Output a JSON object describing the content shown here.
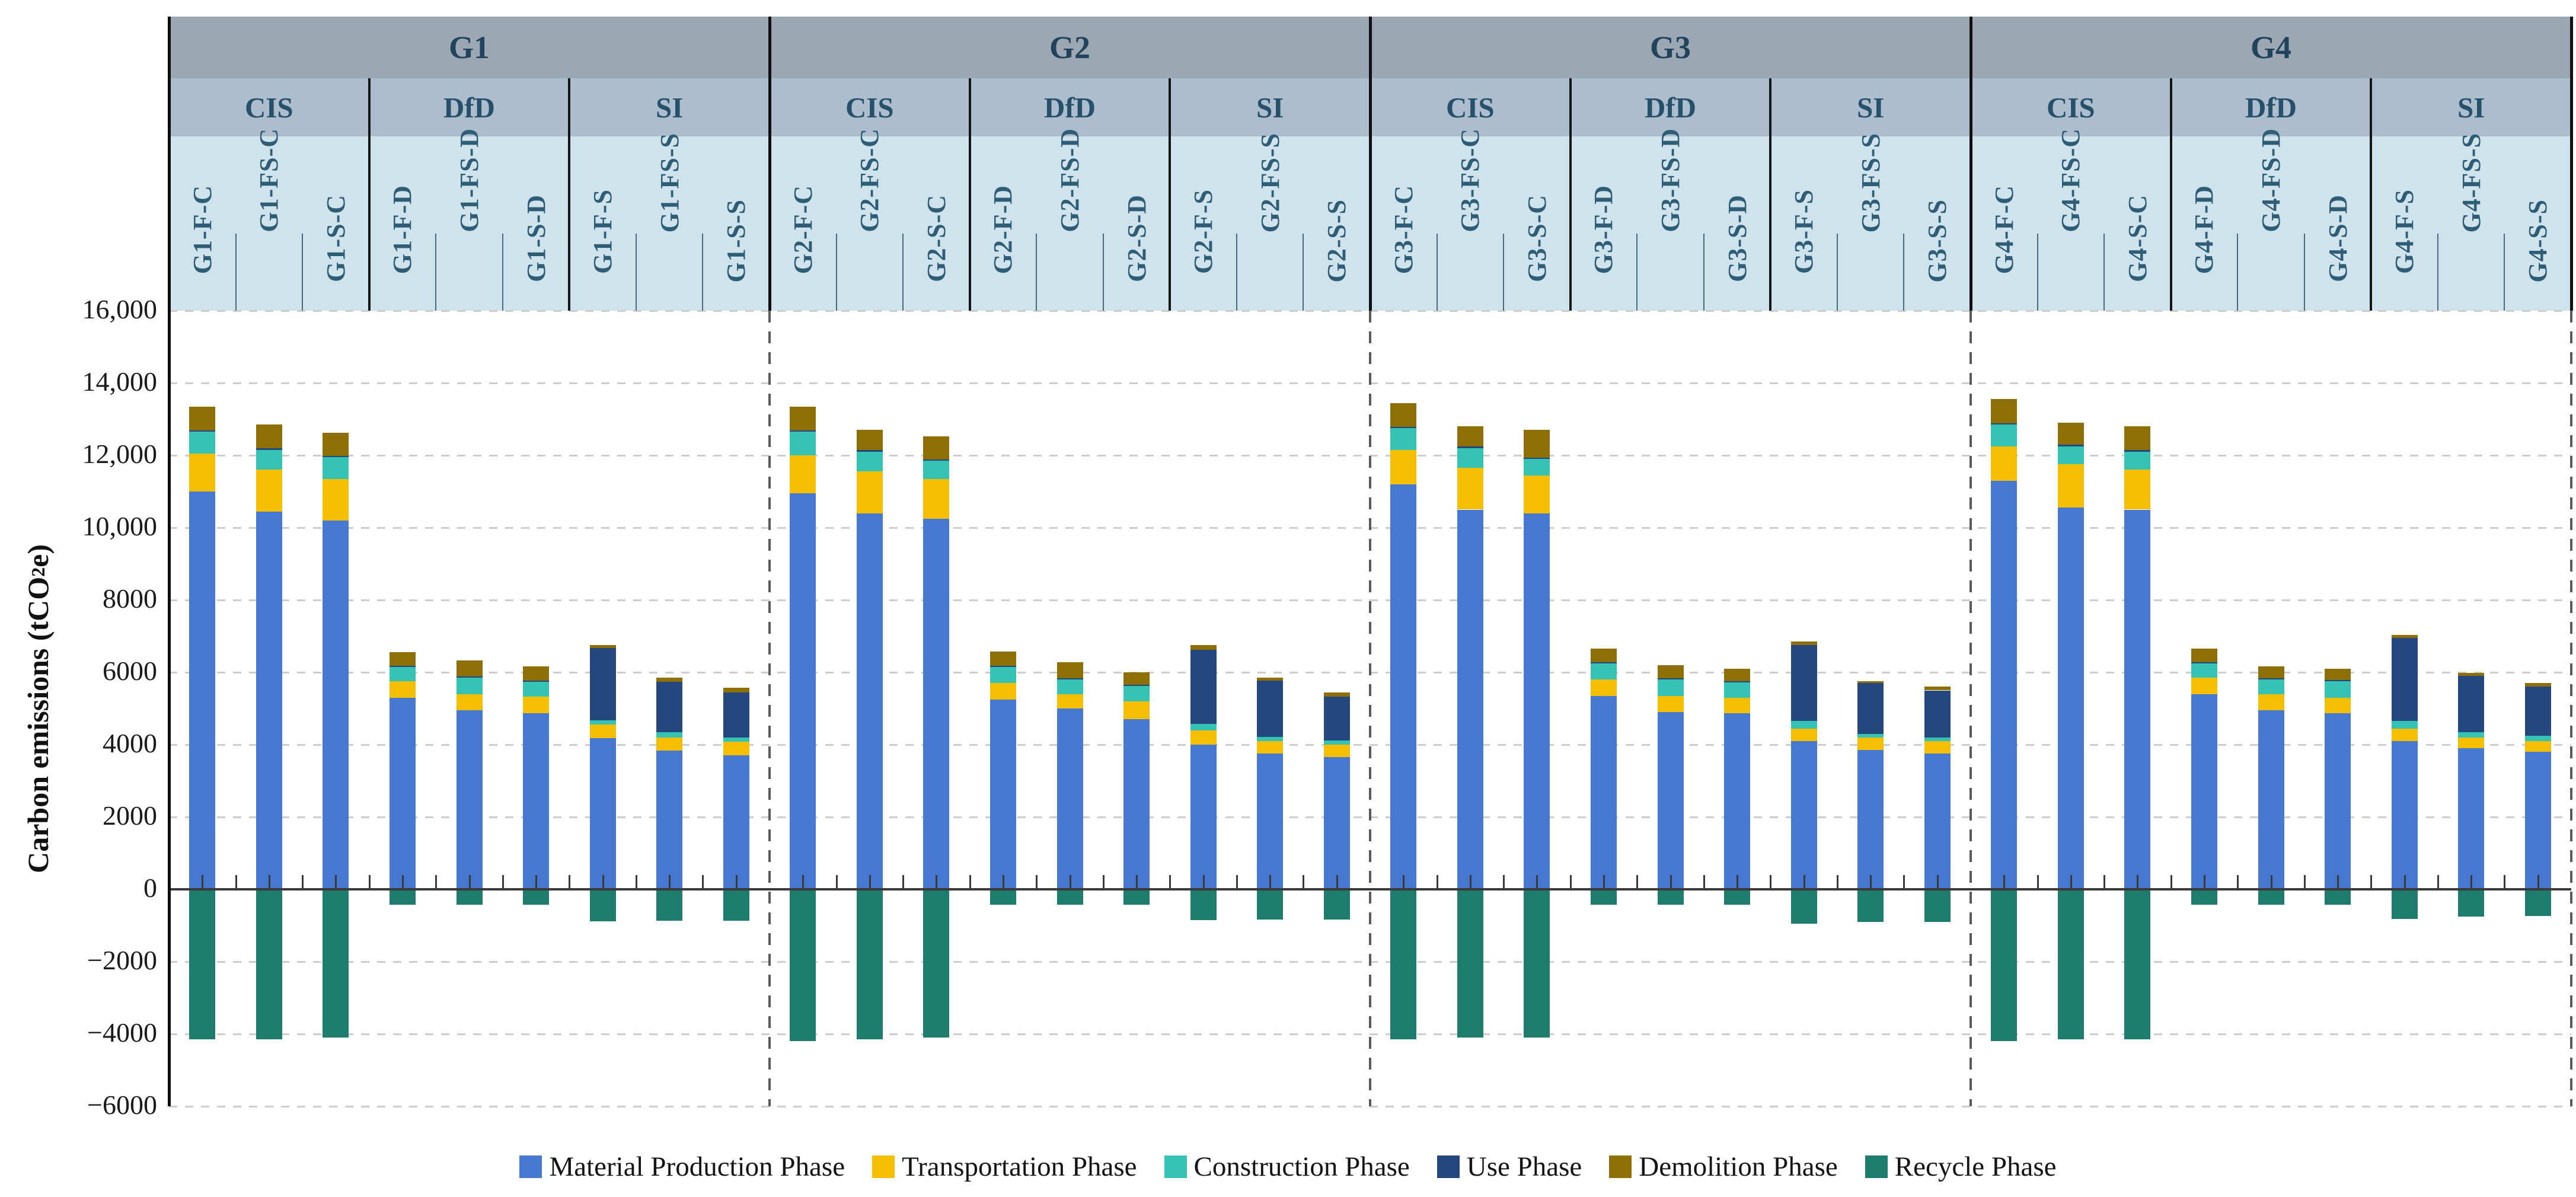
{
  "axis": {
    "y_title_prefix": "Carbon emissions (tCO",
    "y_title_sub": "2",
    "y_title_suffix": "e)",
    "y_min": -6000,
    "y_max": 16000,
    "y_step": 2000,
    "y_ticks": [
      {
        "value": 16000,
        "label": "16,000"
      },
      {
        "value": 14000,
        "label": "14,000"
      },
      {
        "value": 12000,
        "label": "12,000"
      },
      {
        "value": 10000,
        "label": "10,000"
      },
      {
        "value": 8000,
        "label": "8000"
      },
      {
        "value": 6000,
        "label": "6000"
      },
      {
        "value": 4000,
        "label": "4000"
      },
      {
        "value": 2000,
        "label": "2000"
      },
      {
        "value": 0,
        "label": "0"
      },
      {
        "value": -2000,
        "label": "−2000"
      },
      {
        "value": -4000,
        "label": "−4000"
      },
      {
        "value": -6000,
        "label": "−6000"
      }
    ]
  },
  "header": {
    "groups": [
      {
        "label": "G1",
        "subgroups": [
          {
            "label": "CIS",
            "columns": [
              "G1-F-C",
              "G1-FS-C",
              "G1-S-C"
            ]
          },
          {
            "label": "DfD",
            "columns": [
              "G1-F-D",
              "G1-FS-D",
              "G1-S-D"
            ]
          },
          {
            "label": "SI",
            "columns": [
              "G1-F-S",
              "G1-FS-S",
              "G1-S-S"
            ]
          }
        ]
      },
      {
        "label": "G2",
        "subgroups": [
          {
            "label": "CIS",
            "columns": [
              "G2-F-C",
              "G2-FS-C",
              "G2-S-C"
            ]
          },
          {
            "label": "DfD",
            "columns": [
              "G2-F-D",
              "G2-FS-D",
              "G2-S-D"
            ]
          },
          {
            "label": "SI",
            "columns": [
              "G2-F-S",
              "G2-FS-S",
              "G2-S-S"
            ]
          }
        ]
      },
      {
        "label": "G3",
        "subgroups": [
          {
            "label": "CIS",
            "columns": [
              "G3-F-C",
              "G3-FS-C",
              "G3-S-C"
            ]
          },
          {
            "label": "DfD",
            "columns": [
              "G3-F-D",
              "G3-FS-D",
              "G3-S-D"
            ]
          },
          {
            "label": "SI",
            "columns": [
              "G3-F-S",
              "G3-FS-S",
              "G3-S-S"
            ]
          }
        ]
      },
      {
        "label": "G4",
        "subgroups": [
          {
            "label": "CIS",
            "columns": [
              "G4-F-C",
              "G4-FS-C",
              "G4-S-C"
            ]
          },
          {
            "label": "DfD",
            "columns": [
              "G4-F-D",
              "G4-FS-D",
              "G4-S-D"
            ]
          },
          {
            "label": "SI",
            "columns": [
              "G4-F-S",
              "G4-FS-S",
              "G4-S-S"
            ]
          }
        ]
      }
    ]
  },
  "legend": {
    "items": [
      {
        "key": "material",
        "label": "Material Production Phase",
        "color": "#4778D0"
      },
      {
        "key": "transportation",
        "label": "Transportation Phase",
        "color": "#F6BE00"
      },
      {
        "key": "construction",
        "label": "Construction Phase",
        "color": "#35C3B4"
      },
      {
        "key": "use",
        "label": "Use Phase",
        "color": "#24477E"
      },
      {
        "key": "demolition",
        "label": "Demolition Phase",
        "color": "#8D6F05"
      },
      {
        "key": "recycle",
        "label": "Recycle Phase",
        "color": "#1E7C6C"
      }
    ]
  },
  "chart_data": {
    "type": "bar",
    "stacked": true,
    "title": "",
    "xlabel": "",
    "ylabel": "Carbon emissions (tCO2e)",
    "ylim": [
      -6000,
      16000
    ],
    "grid": "dashed-horizontal",
    "legend_position": "bottom",
    "categories": [
      "G1-F-C",
      "G1-FS-C",
      "G1-S-C",
      "G1-F-D",
      "G1-FS-D",
      "G1-S-D",
      "G1-F-S",
      "G1-FS-S",
      "G1-S-S",
      "G2-F-C",
      "G2-FS-C",
      "G2-S-C",
      "G2-F-D",
      "G2-FS-D",
      "G2-S-D",
      "G2-F-S",
      "G2-FS-S",
      "G2-S-S",
      "G3-F-C",
      "G3-FS-C",
      "G3-S-C",
      "G3-F-D",
      "G3-FS-D",
      "G3-S-D",
      "G3-F-S",
      "G3-FS-S",
      "G3-S-S",
      "G4-F-C",
      "G4-FS-C",
      "G4-S-C",
      "G4-F-D",
      "G4-FS-D",
      "G4-S-D",
      "G4-F-S",
      "G4-FS-S",
      "G4-S-S"
    ],
    "series": [
      {
        "key": "material",
        "name": "Material Production Phase",
        "color": "#4778D0",
        "values": [
          11000,
          10450,
          10200,
          5300,
          4950,
          4870,
          4180,
          3840,
          3700,
          10950,
          10400,
          10250,
          5250,
          5000,
          4700,
          4000,
          3750,
          3650,
          11200,
          10500,
          10400,
          5350,
          4900,
          4870,
          4100,
          3850,
          3750,
          11300,
          10550,
          10500,
          5400,
          4950,
          4870,
          4100,
          3900,
          3800
        ]
      },
      {
        "key": "transportation",
        "name": "Transportation Phase",
        "color": "#F6BE00",
        "values": [
          1050,
          1150,
          1150,
          450,
          450,
          450,
          370,
          350,
          390,
          1050,
          1150,
          1100,
          450,
          400,
          500,
          400,
          350,
          350,
          950,
          1150,
          1050,
          450,
          450,
          430,
          350,
          350,
          350,
          950,
          1200,
          1100,
          450,
          450,
          430,
          350,
          300,
          300
        ]
      },
      {
        "key": "construction",
        "name": "Construction Phase",
        "color": "#35C3B4",
        "values": [
          600,
          550,
          600,
          400,
          450,
          420,
          130,
          150,
          110,
          650,
          550,
          500,
          450,
          400,
          420,
          180,
          120,
          120,
          600,
          550,
          450,
          450,
          450,
          420,
          200,
          100,
          100,
          600,
          500,
          500,
          400,
          400,
          450,
          200,
          150,
          150
        ]
      },
      {
        "key": "use",
        "name": "Use Phase",
        "color": "#24477E",
        "values": [
          40,
          40,
          40,
          30,
          30,
          30,
          2000,
          1390,
          1250,
          40,
          40,
          40,
          30,
          30,
          30,
          2050,
          1550,
          1200,
          40,
          40,
          40,
          30,
          30,
          30,
          2100,
          1400,
          1300,
          40,
          40,
          40,
          30,
          30,
          30,
          2300,
          1550,
          1350
        ]
      },
      {
        "key": "demolition",
        "name": "Demolition Phase",
        "color": "#8D6F05",
        "values": [
          660,
          660,
          630,
          370,
          450,
          390,
          80,
          130,
          130,
          660,
          560,
          630,
          400,
          450,
          350,
          130,
          80,
          120,
          660,
          560,
          760,
          370,
          370,
          350,
          100,
          50,
          100,
          660,
          610,
          660,
          370,
          330,
          320,
          80,
          80,
          100
        ]
      },
      {
        "key": "recycle",
        "name": "Recycle Phase",
        "color": "#1E7C6C",
        "values": [
          -4150,
          -4150,
          -4100,
          -420,
          -420,
          -420,
          -890,
          -870,
          -870,
          -4200,
          -4150,
          -4100,
          -430,
          -430,
          -430,
          -860,
          -830,
          -830,
          -4150,
          -4100,
          -4100,
          -430,
          -430,
          -430,
          -950,
          -900,
          -900,
          -4200,
          -4150,
          -4150,
          -430,
          -430,
          -430,
          -820,
          -760,
          -730
        ]
      }
    ]
  }
}
